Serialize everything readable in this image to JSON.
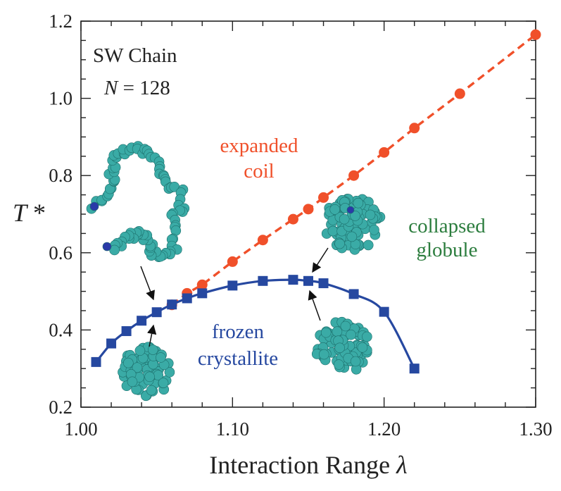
{
  "chart_data": {
    "type": "line",
    "title": "",
    "xlabel_prefix": "Interaction Range ",
    "xlabel_symbol": "λ",
    "ylabel_symbol": "T",
    "ylabel_suffix": " *",
    "xlim": [
      1.0,
      1.3
    ],
    "ylim": [
      0.2,
      1.2
    ],
    "x_ticks": [
      1.0,
      1.1,
      1.2,
      1.3
    ],
    "x_tick_labels": [
      "1.00",
      "1.10",
      "1.20",
      "1.30"
    ],
    "y_ticks": [
      0.2,
      0.4,
      0.6,
      0.8,
      1.0,
      1.2
    ],
    "y_tick_labels": [
      "0.2",
      "0.4",
      "0.6",
      "0.8",
      "1.0",
      "1.2"
    ],
    "grid": false,
    "series": [
      {
        "name": "",
        "color": "#f0502a",
        "marker": "circle",
        "line": "dashed",
        "x": [
          1.06,
          1.07,
          1.08,
          1.1,
          1.12,
          1.14,
          1.15,
          1.16,
          1.18,
          1.2,
          1.22,
          1.25,
          1.3
        ],
        "y": [
          0.465,
          0.495,
          0.517,
          0.577,
          0.633,
          0.687,
          0.713,
          0.743,
          0.8,
          0.86,
          0.923,
          1.012,
          1.165
        ]
      },
      {
        "name": "",
        "color": "#2648a0",
        "marker": "square",
        "line": "solid",
        "x": [
          1.01,
          1.02,
          1.03,
          1.04,
          1.05,
          1.06,
          1.07,
          1.08,
          1.1,
          1.12,
          1.14,
          1.15,
          1.16,
          1.18,
          1.2,
          1.22
        ],
        "y": [
          0.317,
          0.365,
          0.397,
          0.424,
          0.446,
          0.466,
          0.482,
          0.495,
          0.515,
          0.527,
          0.53,
          0.527,
          0.521,
          0.493,
          0.447,
          0.3
        ]
      }
    ],
    "annotations": {
      "system_line1": "SW Chain",
      "system_N_symbol": "N",
      "system_N_value": " = 128",
      "expanded_line1": "expanded",
      "expanded_line2": "coil",
      "collapsed_line1": "collapsed",
      "collapsed_line2": "globule",
      "frozen_line1": "frozen",
      "frozen_line2": "crystallite"
    },
    "colors": {
      "expanded": "#f0502a",
      "collapsed": "#2c7d3e",
      "frozen": "#2648a0",
      "bead": "#3aaba6",
      "bead_end": "#2a3aa8",
      "arrow": "#111111"
    }
  }
}
